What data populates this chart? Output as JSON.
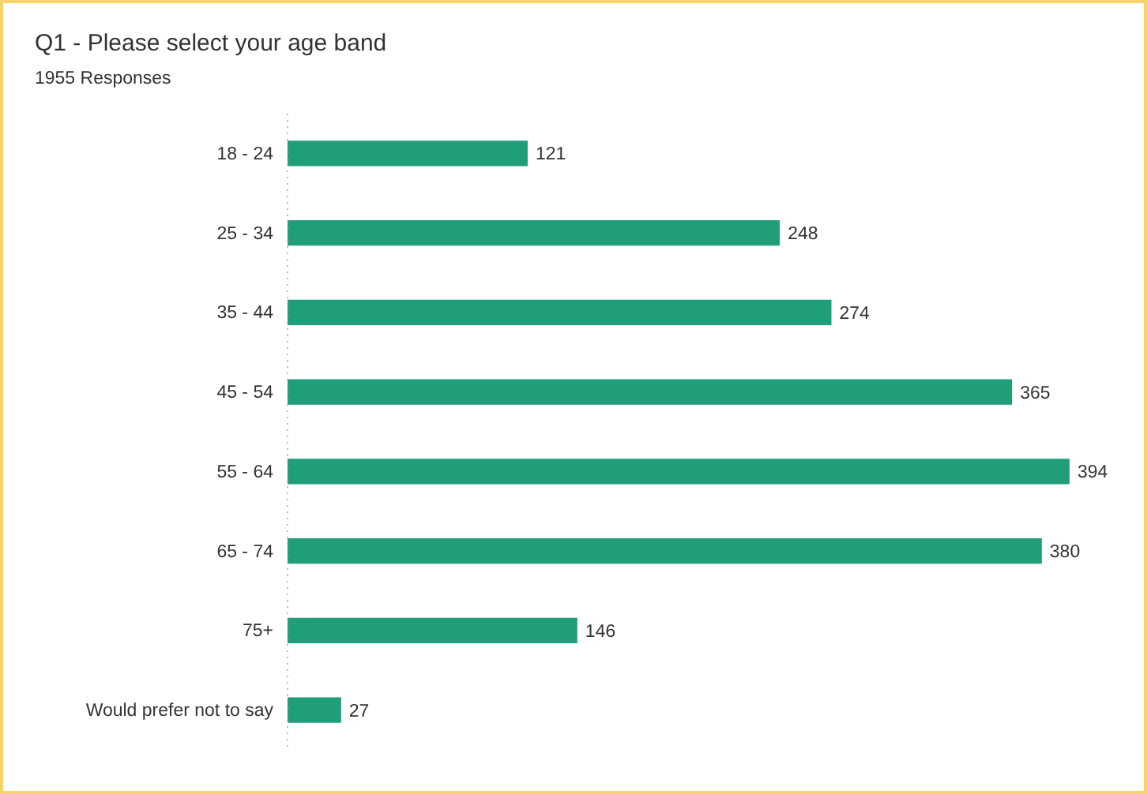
{
  "chart_data": {
    "type": "bar",
    "orientation": "horizontal",
    "title": "Q1 - Please select your age band",
    "subtitle": "1955 Responses",
    "categories": [
      "18 - 24",
      "25 - 34",
      "35 - 44",
      "45 - 54",
      "55 - 64",
      "65 - 74",
      "75+",
      "Would prefer not to say"
    ],
    "values": [
      121,
      248,
      274,
      365,
      394,
      380,
      146,
      27
    ],
    "color": "#1f9e79",
    "data_labels": true
  }
}
